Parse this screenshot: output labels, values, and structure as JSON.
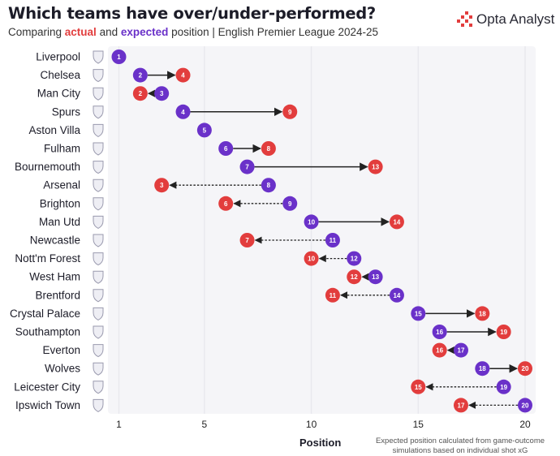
{
  "header": {
    "title": "Which teams have over/under-performed?",
    "subtitle_prefix": "Comparing ",
    "subtitle_actual": "actual",
    "subtitle_and": " and ",
    "subtitle_expected": "expected",
    "subtitle_suffix": " position | English Premier League 2024-25",
    "brand": "Opta Analyst"
  },
  "colors": {
    "actual": "#e23d3d",
    "expected": "#6a31c9",
    "line": "#222222",
    "grid": "#e9e9ee",
    "plot_bg": "#f5f5f8",
    "crest_fill": "#eeeef4",
    "crest_stroke": "#9a9aae"
  },
  "chart_data": {
    "type": "dot-arrow",
    "xlabel": "Position",
    "ticks": [
      1,
      5,
      10,
      15,
      20
    ],
    "xlim": [
      1,
      20
    ],
    "grid": true,
    "teams": [
      {
        "name": "Liverpool",
        "actual": 1,
        "expected": 1
      },
      {
        "name": "Chelsea",
        "actual": 4,
        "expected": 2
      },
      {
        "name": "Man City",
        "actual": 2,
        "expected": 3
      },
      {
        "name": "Spurs",
        "actual": 9,
        "expected": 4
      },
      {
        "name": "Aston Villa",
        "actual": 5,
        "expected": 5
      },
      {
        "name": "Fulham",
        "actual": 8,
        "expected": 6
      },
      {
        "name": "Bournemouth",
        "actual": 13,
        "expected": 7
      },
      {
        "name": "Arsenal",
        "actual": 3,
        "expected": 8
      },
      {
        "name": "Brighton",
        "actual": 6,
        "expected": 9
      },
      {
        "name": "Man Utd",
        "actual": 14,
        "expected": 10
      },
      {
        "name": "Newcastle",
        "actual": 7,
        "expected": 11
      },
      {
        "name": "Nott'm Forest",
        "actual": 10,
        "expected": 12
      },
      {
        "name": "West Ham",
        "actual": 12,
        "expected": 13
      },
      {
        "name": "Brentford",
        "actual": 11,
        "expected": 14
      },
      {
        "name": "Crystal Palace",
        "actual": 18,
        "expected": 15
      },
      {
        "name": "Southampton",
        "actual": 19,
        "expected": 16
      },
      {
        "name": "Everton",
        "actual": 16,
        "expected": 17
      },
      {
        "name": "Wolves",
        "actual": 20,
        "expected": 18
      },
      {
        "name": "Leicester City",
        "actual": 15,
        "expected": 19
      },
      {
        "name": "Ipswich Town",
        "actual": 17,
        "expected": 20
      }
    ],
    "legend": {
      "actual": "actual",
      "expected": "expected"
    },
    "note": "Expected position calculated from game-outcome simulations based on individual shot xG"
  }
}
